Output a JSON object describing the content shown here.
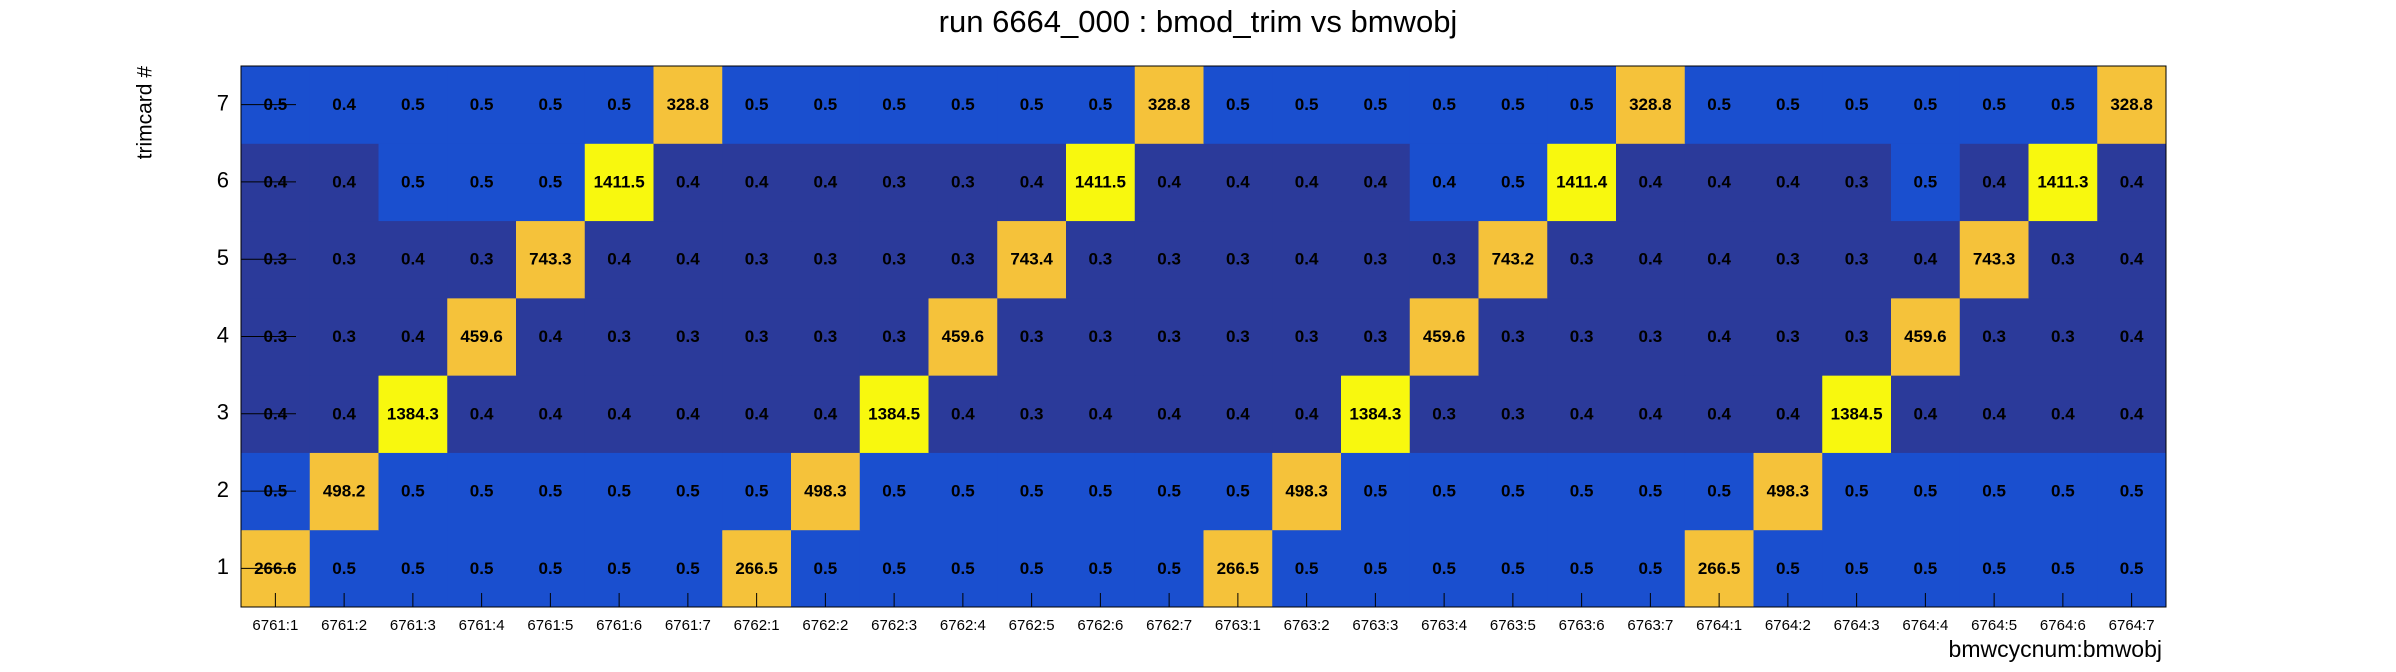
{
  "chart_data": {
    "type": "heatmap",
    "title": "run 6664_000 : bmod_trim vs bmwobj",
    "x_label": "bmwcycnum:bmwobj",
    "y_label": "trimcard #",
    "categories": [
      "6761:1",
      "6761:2",
      "6761:3",
      "6761:4",
      "6761:5",
      "6761:6",
      "6761:7",
      "6762:1",
      "6762:2",
      "6762:3",
      "6762:4",
      "6762:5",
      "6762:6",
      "6762:7",
      "6763:1",
      "6763:2",
      "6763:3",
      "6763:4",
      "6763:5",
      "6763:6",
      "6763:7",
      "6764:1",
      "6764:2",
      "6764:3",
      "6764:4",
      "6764:5",
      "6764:6",
      "6764:7"
    ],
    "ylim": [
      0.5,
      7.5
    ],
    "yticks": [
      1,
      2,
      3,
      4,
      5,
      6,
      7
    ],
    "values": [
      [
        266.6,
        0.5,
        0.5,
        0.5,
        0.5,
        0.5,
        0.5,
        266.5,
        0.5,
        0.5,
        0.5,
        0.5,
        0.5,
        0.5,
        266.5,
        0.5,
        0.5,
        0.5,
        0.5,
        0.5,
        0.5,
        266.5,
        0.5,
        0.5,
        0.5,
        0.5,
        0.5,
        0.5
      ],
      [
        0.5,
        498.2,
        0.5,
        0.5,
        0.5,
        0.5,
        0.5,
        0.5,
        498.3,
        0.5,
        0.5,
        0.5,
        0.5,
        0.5,
        0.5,
        498.3,
        0.5,
        0.5,
        0.5,
        0.5,
        0.5,
        0.5,
        498.3,
        0.5,
        0.5,
        0.5,
        0.5,
        0.5
      ],
      [
        0.4,
        0.4,
        1384.3,
        0.4,
        0.4,
        0.4,
        0.4,
        0.4,
        0.4,
        1384.5,
        0.4,
        0.3,
        0.4,
        0.4,
        0.4,
        0.4,
        1384.3,
        0.3,
        0.3,
        0.4,
        0.4,
        0.4,
        0.4,
        1384.5,
        0.4,
        0.4,
        0.4,
        0.4
      ],
      [
        0.3,
        0.3,
        0.4,
        459.6,
        0.4,
        0.3,
        0.3,
        0.3,
        0.3,
        0.3,
        459.6,
        0.3,
        0.3,
        0.3,
        0.3,
        0.3,
        0.3,
        459.6,
        0.3,
        0.3,
        0.3,
        0.4,
        0.3,
        0.3,
        459.6,
        0.3,
        0.3,
        0.4
      ],
      [
        0.3,
        0.3,
        0.4,
        0.3,
        743.3,
        0.4,
        0.4,
        0.3,
        0.3,
        0.3,
        0.3,
        743.4,
        0.3,
        0.3,
        0.3,
        0.4,
        0.3,
        0.3,
        743.2,
        0.3,
        0.4,
        0.4,
        0.3,
        0.3,
        0.4,
        743.3,
        0.3,
        0.4
      ],
      [
        0.4,
        0.4,
        0.5,
        0.5,
        0.5,
        1411.5,
        0.4,
        0.4,
        0.4,
        0.3,
        0.3,
        0.4,
        1411.5,
        0.4,
        0.4,
        0.4,
        0.4,
        0.4,
        0.5,
        1411.4,
        0.4,
        0.4,
        0.4,
        0.3,
        0.5,
        0.4,
        1411.3,
        0.4
      ],
      [
        0.5,
        0.4,
        0.5,
        0.5,
        0.5,
        0.5,
        328.8,
        0.5,
        0.5,
        0.5,
        0.5,
        0.5,
        0.5,
        328.8,
        0.5,
        0.5,
        0.5,
        0.5,
        0.5,
        0.5,
        328.8,
        0.5,
        0.5,
        0.5,
        0.5,
        0.5,
        0.5,
        328.8
      ]
    ],
    "colors": [
      [
        "#f5c23a",
        "#1a4fcf",
        "#1a4fcf",
        "#1a4fcf",
        "#1a4fcf",
        "#1a4fcf",
        "#1a4fcf",
        "#f5c23a",
        "#1a4fcf",
        "#1a4fcf",
        "#1a4fcf",
        "#1a4fcf",
        "#1a4fcf",
        "#1a4fcf",
        "#f5c23a",
        "#1a4fcf",
        "#1a4fcf",
        "#1a4fcf",
        "#1a4fcf",
        "#1a4fcf",
        "#1a4fcf",
        "#f5c23a",
        "#1a4fcf",
        "#1a4fcf",
        "#1a4fcf",
        "#1a4fcf",
        "#1a4fcf",
        "#1a4fcf"
      ],
      [
        "#1a4fcf",
        "#f5c23a",
        "#1a4fcf",
        "#1a4fcf",
        "#1a4fcf",
        "#1a4fcf",
        "#1a4fcf",
        "#1a4fcf",
        "#f5c23a",
        "#1a4fcf",
        "#1a4fcf",
        "#1a4fcf",
        "#1a4fcf",
        "#1a4fcf",
        "#1a4fcf",
        "#f5c23a",
        "#1a4fcf",
        "#1a4fcf",
        "#1a4fcf",
        "#1a4fcf",
        "#1a4fcf",
        "#1a4fcf",
        "#f5c23a",
        "#1a4fcf",
        "#1a4fcf",
        "#1a4fcf",
        "#1a4fcf",
        "#1a4fcf"
      ],
      [
        "#2b3a9a",
        "#2b3a9a",
        "#f8f80e",
        "#2b3a9a",
        "#2b3a9a",
        "#2b3a9a",
        "#2b3a9a",
        "#2b3a9a",
        "#2b3a9a",
        "#f8f80e",
        "#2b3a9a",
        "#2b3a9a",
        "#2b3a9a",
        "#2b3a9a",
        "#2b3a9a",
        "#2b3a9a",
        "#f8f80e",
        "#2b3a9a",
        "#2b3a9a",
        "#2b3a9a",
        "#2b3a9a",
        "#2b3a9a",
        "#2b3a9a",
        "#f8f80e",
        "#2b3a9a",
        "#2b3a9a",
        "#2b3a9a",
        "#2b3a9a"
      ],
      [
        "#2b3a9a",
        "#2b3a9a",
        "#2b3a9a",
        "#f5c23a",
        "#2b3a9a",
        "#2b3a9a",
        "#2b3a9a",
        "#2b3a9a",
        "#2b3a9a",
        "#2b3a9a",
        "#f5c23a",
        "#2b3a9a",
        "#2b3a9a",
        "#2b3a9a",
        "#2b3a9a",
        "#2b3a9a",
        "#2b3a9a",
        "#f5c23a",
        "#2b3a9a",
        "#2b3a9a",
        "#2b3a9a",
        "#2b3a9a",
        "#2b3a9a",
        "#2b3a9a",
        "#f5c23a",
        "#2b3a9a",
        "#2b3a9a",
        "#2b3a9a"
      ],
      [
        "#2b3a9a",
        "#2b3a9a",
        "#2b3a9a",
        "#2b3a9a",
        "#f5c23a",
        "#2b3a9a",
        "#2b3a9a",
        "#2b3a9a",
        "#2b3a9a",
        "#2b3a9a",
        "#2b3a9a",
        "#f5c23a",
        "#2b3a9a",
        "#2b3a9a",
        "#2b3a9a",
        "#2b3a9a",
        "#2b3a9a",
        "#2b3a9a",
        "#f5c23a",
        "#2b3a9a",
        "#2b3a9a",
        "#2b3a9a",
        "#2b3a9a",
        "#2b3a9a",
        "#2b3a9a",
        "#f5c23a",
        "#2b3a9a",
        "#2b3a9a"
      ],
      [
        "#2b3a9a",
        "#2b3a9a",
        "#1a4fcf",
        "#1a4fcf",
        "#1a4fcf",
        "#f8f80e",
        "#2b3a9a",
        "#2b3a9a",
        "#2b3a9a",
        "#2b3a9a",
        "#2b3a9a",
        "#2b3a9a",
        "#f8f80e",
        "#2b3a9a",
        "#2b3a9a",
        "#2b3a9a",
        "#2b3a9a",
        "#1a4fcf",
        "#1a4fcf",
        "#f8f80e",
        "#2b3a9a",
        "#2b3a9a",
        "#2b3a9a",
        "#2b3a9a",
        "#1a4fcf",
        "#2b3a9a",
        "#f8f80e",
        "#2b3a9a"
      ],
      [
        "#1a4fcf",
        "#1a4fcf",
        "#1a4fcf",
        "#1a4fcf",
        "#1a4fcf",
        "#1a4fcf",
        "#f5c23a",
        "#1a4fcf",
        "#1a4fcf",
        "#1a4fcf",
        "#1a4fcf",
        "#1a4fcf",
        "#1a4fcf",
        "#f5c23a",
        "#1a4fcf",
        "#1a4fcf",
        "#1a4fcf",
        "#1a4fcf",
        "#1a4fcf",
        "#1a4fcf",
        "#f5c23a",
        "#1a4fcf",
        "#1a4fcf",
        "#1a4fcf",
        "#1a4fcf",
        "#1a4fcf",
        "#1a4fcf",
        "#f5c23a"
      ]
    ]
  }
}
